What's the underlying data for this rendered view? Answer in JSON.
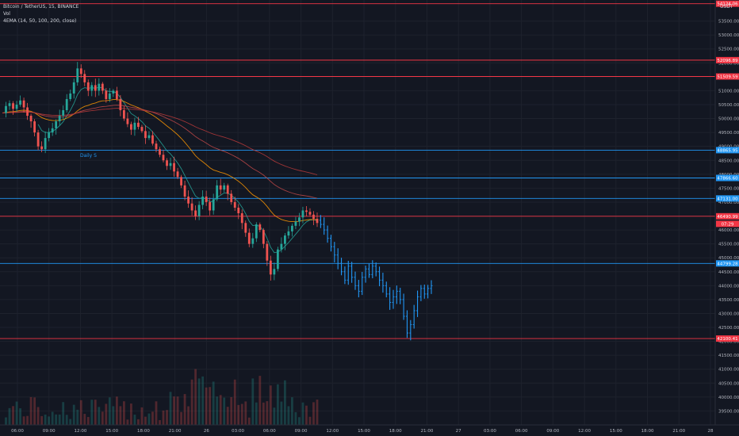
{
  "header": {
    "symbol": "Bitcoin / TetherUS, 15, BINANCE",
    "vol_label": "Vol",
    "ema_label": "4EMA (14, 50, 100, 200, close)"
  },
  "currency_label": "USDT",
  "chart_data": {
    "type": "candlestick",
    "ylim": [
      39000,
      54200
    ],
    "price_ticks": [
      53500,
      53000,
      52500,
      52000,
      51500,
      51000,
      50500,
      50000,
      49500,
      49000,
      48500,
      48000,
      47500,
      47000,
      46500,
      46000,
      45500,
      45000,
      44500,
      44000,
      43500,
      43000,
      42500,
      42000,
      41500,
      41000,
      40500,
      40000,
      39500
    ],
    "time_ticks": [
      "06:00",
      "09:00",
      "12:00",
      "15:00",
      "18:00",
      "21:00",
      "26",
      "03:00",
      "06:00",
      "09:00",
      "12:00",
      "15:00",
      "18:00",
      "21:00",
      "27",
      "03:00",
      "06:00",
      "09:00",
      "12:00",
      "15:00",
      "18:00",
      "21:00",
      "28"
    ],
    "levels": [
      {
        "label": "54124.06",
        "value": 54124,
        "color": "#f23645"
      },
      {
        "label": "52096.89",
        "value": 52097,
        "color": "#f23645"
      },
      {
        "label": "51509.59",
        "value": 51510,
        "color": "#f23645"
      },
      {
        "label": "48865.95",
        "value": 48866,
        "color": "#2196f3"
      },
      {
        "label": "47866.60",
        "value": 47867,
        "color": "#2196f3"
      },
      {
        "label": "47131.00",
        "value": 47131,
        "color": "#2196f3"
      },
      {
        "label": "46490.99",
        "value": 46491,
        "color": "#f23645"
      },
      {
        "label": "44799.28",
        "value": 44799,
        "color": "#2196f3"
      },
      {
        "label": "42100.41",
        "value": 42100,
        "color": "#f23645"
      }
    ],
    "current_price": {
      "label": "07:29",
      "value": 46220,
      "color": "#f23645"
    },
    "annotation": {
      "text": "Daily S",
      "value": 48760,
      "color": "#2196f3"
    },
    "price_path": [
      50200,
      50450,
      50550,
      50350,
      50500,
      50650,
      50400,
      50100,
      49900,
      49500,
      49000,
      48900,
      49300,
      49500,
      49650,
      49900,
      50100,
      50300,
      50700,
      50900,
      51300,
      51800,
      51600,
      51300,
      51000,
      51200,
      51000,
      51250,
      51000,
      50700,
      50900,
      51000,
      50700,
      50300,
      50000,
      49800,
      49600,
      49850,
      49700,
      49550,
      49300,
      49400,
      49100,
      48900,
      48700,
      48500,
      48300,
      48400,
      48100,
      47900,
      47600,
      47200,
      46950,
      46700,
      46500,
      46900,
      47200,
      47000,
      46700,
      47100,
      47600,
      47450,
      47600,
      47300,
      47000,
      46800,
      46600,
      46250,
      45900,
      45500,
      45700,
      46200,
      46000,
      45500,
      44900,
      44400,
      44600,
      45300,
      45500,
      45800,
      45950,
      46150,
      46300,
      46450,
      46700,
      46650,
      46550,
      46400,
      46250
    ],
    "projection_path": [
      46350,
      46200,
      46000,
      45700,
      45400,
      45100,
      44800,
      44500,
      44200,
      44700,
      44300,
      44000,
      43800,
      44300,
      44600,
      44400,
      44700,
      44500,
      44200,
      44000,
      43700,
      43400,
      43600,
      43800,
      43500,
      42900,
      42300,
      42600,
      43100,
      43600,
      43900,
      43700,
      43900,
      44000
    ],
    "ema_lines": [
      {
        "period": 14,
        "color": "#26a69a"
      },
      {
        "period": 50,
        "color": "#ff9800"
      },
      {
        "period": 100,
        "color": "#c04848"
      },
      {
        "period": 200,
        "color": "#b83a3a"
      }
    ],
    "grid": true
  }
}
